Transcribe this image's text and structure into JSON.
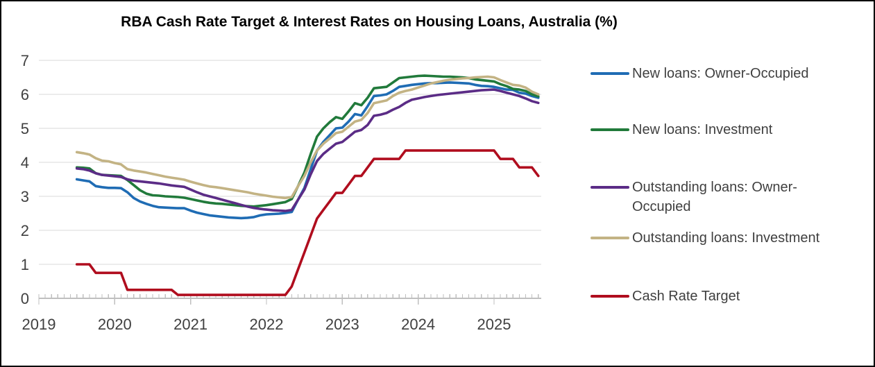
{
  "title": "RBA Cash Rate Target & Interest Rates on Housing Loans, Australia (%)",
  "colors": {
    "background": "#FFFFFF",
    "frame_border": "#000000",
    "gridline": "#D9D9D9",
    "axis_line": "#BFBFBF",
    "tick_label": "#404040",
    "legend_text": "#3F3F3F",
    "title_text": "#000000"
  },
  "chart_data": {
    "type": "line",
    "title": "RBA Cash Rate Target & Interest Rates on Housing Loans, Australia (%)",
    "xlabel": "",
    "ylabel": "",
    "x_start": "2019-07",
    "x_end": "2025-08",
    "frequency": "monthly",
    "x_tick_labels": [
      "2019",
      "2020",
      "2021",
      "2022",
      "2023",
      "2024",
      "2025"
    ],
    "y_tick_labels": [
      "0",
      "1",
      "2",
      "3",
      "4",
      "5",
      "6",
      "7"
    ],
    "ylim": [
      0,
      7
    ],
    "grid": "horizontal",
    "legend_position": "right",
    "series": [
      {
        "name": "New loans: Owner-Occupied",
        "color": "#1F6CB4",
        "values": [
          3.5,
          3.47,
          3.44,
          3.3,
          3.27,
          3.25,
          3.25,
          3.24,
          3.12,
          2.95,
          2.85,
          2.78,
          2.72,
          2.68,
          2.67,
          2.66,
          2.65,
          2.65,
          2.58,
          2.52,
          2.48,
          2.44,
          2.42,
          2.4,
          2.38,
          2.37,
          2.36,
          2.37,
          2.39,
          2.44,
          2.47,
          2.48,
          2.49,
          2.51,
          2.54,
          2.9,
          3.25,
          3.8,
          4.35,
          4.6,
          4.8,
          5.0,
          5.02,
          5.2,
          5.42,
          5.38,
          5.65,
          5.95,
          5.97,
          6.0,
          6.1,
          6.22,
          6.25,
          6.28,
          6.3,
          6.32,
          6.33,
          6.33,
          6.34,
          6.35,
          6.34,
          6.33,
          6.32,
          6.28,
          6.25,
          6.24,
          6.22,
          6.18,
          6.14,
          6.13,
          6.05,
          6.02,
          5.95,
          5.9
        ]
      },
      {
        "name": "New loans: Investment",
        "color": "#217A3B",
        "values": [
          3.85,
          3.84,
          3.82,
          3.68,
          3.63,
          3.62,
          3.61,
          3.6,
          3.48,
          3.33,
          3.18,
          3.08,
          3.03,
          3.02,
          3.0,
          2.99,
          2.98,
          2.96,
          2.92,
          2.88,
          2.84,
          2.81,
          2.79,
          2.78,
          2.76,
          2.74,
          2.72,
          2.71,
          2.7,
          2.72,
          2.74,
          2.77,
          2.8,
          2.83,
          2.92,
          3.3,
          3.7,
          4.25,
          4.76,
          5.0,
          5.18,
          5.33,
          5.28,
          5.5,
          5.74,
          5.68,
          5.9,
          6.18,
          6.2,
          6.22,
          6.35,
          6.48,
          6.5,
          6.52,
          6.54,
          6.55,
          6.54,
          6.53,
          6.52,
          6.52,
          6.51,
          6.5,
          6.48,
          6.44,
          6.42,
          6.4,
          6.38,
          6.3,
          6.24,
          6.16,
          6.14,
          6.1,
          6.0,
          5.94
        ]
      },
      {
        "name": "Outstanding loans: Owner-Occupied",
        "color": "#5B2C86",
        "values": [
          3.82,
          3.8,
          3.76,
          3.68,
          3.63,
          3.61,
          3.59,
          3.57,
          3.5,
          3.46,
          3.44,
          3.42,
          3.4,
          3.38,
          3.35,
          3.32,
          3.3,
          3.28,
          3.2,
          3.12,
          3.05,
          3.0,
          2.95,
          2.9,
          2.85,
          2.8,
          2.75,
          2.7,
          2.66,
          2.63,
          2.61,
          2.59,
          2.58,
          2.57,
          2.6,
          2.9,
          3.2,
          3.65,
          4.04,
          4.25,
          4.4,
          4.55,
          4.6,
          4.75,
          4.9,
          4.95,
          5.1,
          5.37,
          5.4,
          5.45,
          5.55,
          5.63,
          5.75,
          5.84,
          5.88,
          5.92,
          5.95,
          5.98,
          6.0,
          6.02,
          6.04,
          6.06,
          6.08,
          6.1,
          6.12,
          6.13,
          6.14,
          6.1,
          6.05,
          6.0,
          5.95,
          5.88,
          5.8,
          5.75
        ]
      },
      {
        "name": "Outstanding loans: Investment",
        "color": "#C3B384",
        "values": [
          4.3,
          4.27,
          4.23,
          4.12,
          4.05,
          4.03,
          3.98,
          3.94,
          3.8,
          3.76,
          3.73,
          3.7,
          3.66,
          3.62,
          3.58,
          3.55,
          3.52,
          3.49,
          3.43,
          3.38,
          3.33,
          3.29,
          3.27,
          3.24,
          3.21,
          3.18,
          3.15,
          3.12,
          3.08,
          3.05,
          3.02,
          2.99,
          2.97,
          2.95,
          2.98,
          3.3,
          3.6,
          4.0,
          4.35,
          4.55,
          4.7,
          4.86,
          4.9,
          5.05,
          5.2,
          5.25,
          5.45,
          5.74,
          5.78,
          5.82,
          5.95,
          6.05,
          6.1,
          6.14,
          6.2,
          6.26,
          6.32,
          6.36,
          6.4,
          6.43,
          6.45,
          6.47,
          6.48,
          6.5,
          6.51,
          6.52,
          6.5,
          6.42,
          6.35,
          6.28,
          6.26,
          6.2,
          6.08,
          6.0
        ]
      },
      {
        "name": "Cash Rate Target",
        "color": "#B00D1E",
        "values": [
          1.0,
          1.0,
          1.0,
          0.75,
          0.75,
          0.75,
          0.75,
          0.75,
          0.25,
          0.25,
          0.25,
          0.25,
          0.25,
          0.25,
          0.25,
          0.25,
          0.1,
          0.1,
          0.1,
          0.1,
          0.1,
          0.1,
          0.1,
          0.1,
          0.1,
          0.1,
          0.1,
          0.1,
          0.1,
          0.1,
          0.1,
          0.1,
          0.1,
          0.1,
          0.35,
          0.85,
          1.35,
          1.85,
          2.35,
          2.6,
          2.85,
          3.1,
          3.1,
          3.35,
          3.6,
          3.6,
          3.85,
          4.1,
          4.1,
          4.1,
          4.1,
          4.1,
          4.35,
          4.35,
          4.35,
          4.35,
          4.35,
          4.35,
          4.35,
          4.35,
          4.35,
          4.35,
          4.35,
          4.35,
          4.35,
          4.35,
          4.35,
          4.1,
          4.1,
          4.1,
          3.85,
          3.85,
          3.85,
          3.6
        ]
      }
    ]
  },
  "legend": {
    "items": [
      {
        "label": "New loans: Owner-Occupied"
      },
      {
        "label": "New loans: Investment"
      },
      {
        "label": "Outstanding loans: Owner-Occupied"
      },
      {
        "label": "Outstanding loans: Investment"
      },
      {
        "label": "Cash Rate Target"
      }
    ]
  }
}
